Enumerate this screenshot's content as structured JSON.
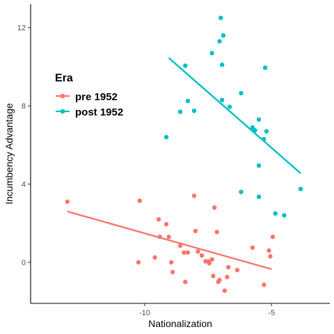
{
  "chart_data": {
    "type": "scatter",
    "xlabel": "Nationalization",
    "ylabel": "Incumbency Advantage",
    "xlim": [
      -14.5,
      -2.7
    ],
    "ylim": [
      -2.1,
      13.2
    ],
    "x_ticks": [
      -10,
      -5
    ],
    "y_ticks": [
      0,
      4,
      8,
      12
    ],
    "x_tick_labels": [
      "-10",
      "-5"
    ],
    "y_tick_labels": [
      "0",
      "4",
      "8",
      "12"
    ],
    "grid": false,
    "legend": {
      "title": "Era",
      "position": "top-left"
    },
    "series": [
      {
        "name": "pre 1952",
        "color": "#F8766D",
        "points": [
          {
            "x": -13.05,
            "y": 3.1
          },
          {
            "x": -10.2,
            "y": 3.15
          },
          {
            "x": -10.25,
            "y": 0.0
          },
          {
            "x": -9.6,
            "y": 0.25
          },
          {
            "x": -9.45,
            "y": 2.2
          },
          {
            "x": -9.4,
            "y": 1.3
          },
          {
            "x": -9.15,
            "y": 1.95
          },
          {
            "x": -9.05,
            "y": 1.3
          },
          {
            "x": -8.95,
            "y": 0.0
          },
          {
            "x": -8.9,
            "y": -0.5
          },
          {
            "x": -8.6,
            "y": 0.85
          },
          {
            "x": -8.45,
            "y": 0.5
          },
          {
            "x": -8.4,
            "y": -1.0
          },
          {
            "x": -8.3,
            "y": 0.5
          },
          {
            "x": -8.05,
            "y": 3.4
          },
          {
            "x": -8.0,
            "y": 1.6
          },
          {
            "x": -7.9,
            "y": 0.55
          },
          {
            "x": -7.75,
            "y": 0.35
          },
          {
            "x": -7.6,
            "y": 0.05
          },
          {
            "x": -7.5,
            "y": 0.05
          },
          {
            "x": -7.45,
            "y": -0.05
          },
          {
            "x": -7.35,
            "y": 0.15
          },
          {
            "x": -7.3,
            "y": -0.7
          },
          {
            "x": -7.25,
            "y": 2.8
          },
          {
            "x": -7.15,
            "y": 1.55
          },
          {
            "x": -7.1,
            "y": -1.0
          },
          {
            "x": -7.05,
            "y": -0.9
          },
          {
            "x": -6.85,
            "y": -1.45
          },
          {
            "x": -6.7,
            "y": -0.25
          },
          {
            "x": -6.75,
            "y": -0.75
          },
          {
            "x": -6.35,
            "y": -0.4
          },
          {
            "x": -5.75,
            "y": 0.75
          },
          {
            "x": -5.3,
            "y": -1.15
          },
          {
            "x": -5.1,
            "y": 0.6
          },
          {
            "x": -5.05,
            "y": 0.3
          },
          {
            "x": -4.95,
            "y": 1.3
          }
        ],
        "trend": {
          "x": [
            -13.05,
            -5.0
          ],
          "y": [
            2.6,
            -0.35
          ]
        }
      },
      {
        "name": "post 1952",
        "color": "#00BFC4",
        "points": [
          {
            "x": -9.15,
            "y": 6.4
          },
          {
            "x": -8.6,
            "y": 7.7
          },
          {
            "x": -8.4,
            "y": 10.05
          },
          {
            "x": -8.3,
            "y": 8.25
          },
          {
            "x": -8.05,
            "y": 7.75
          },
          {
            "x": -7.35,
            "y": 10.7
          },
          {
            "x": -7.0,
            "y": 12.5
          },
          {
            "x": -6.9,
            "y": 11.6
          },
          {
            "x": -7.05,
            "y": 11.3
          },
          {
            "x": -6.95,
            "y": 10.1
          },
          {
            "x": -6.95,
            "y": 8.3
          },
          {
            "x": -6.65,
            "y": 7.95
          },
          {
            "x": -6.2,
            "y": 8.65
          },
          {
            "x": -5.75,
            "y": 6.9
          },
          {
            "x": -5.65,
            "y": 6.75
          },
          {
            "x": -5.5,
            "y": 7.3
          },
          {
            "x": -5.3,
            "y": 6.3
          },
          {
            "x": -5.2,
            "y": 6.7
          },
          {
            "x": -5.25,
            "y": 9.95
          },
          {
            "x": -5.5,
            "y": 4.95
          },
          {
            "x": -6.2,
            "y": 3.6
          },
          {
            "x": -5.5,
            "y": 3.35
          },
          {
            "x": -4.85,
            "y": 2.5
          },
          {
            "x": -4.5,
            "y": 2.4
          },
          {
            "x": -3.85,
            "y": 3.75
          }
        ],
        "trend": {
          "x": [
            -9.05,
            -3.85
          ],
          "y": [
            10.45,
            4.55
          ]
        }
      }
    ]
  }
}
